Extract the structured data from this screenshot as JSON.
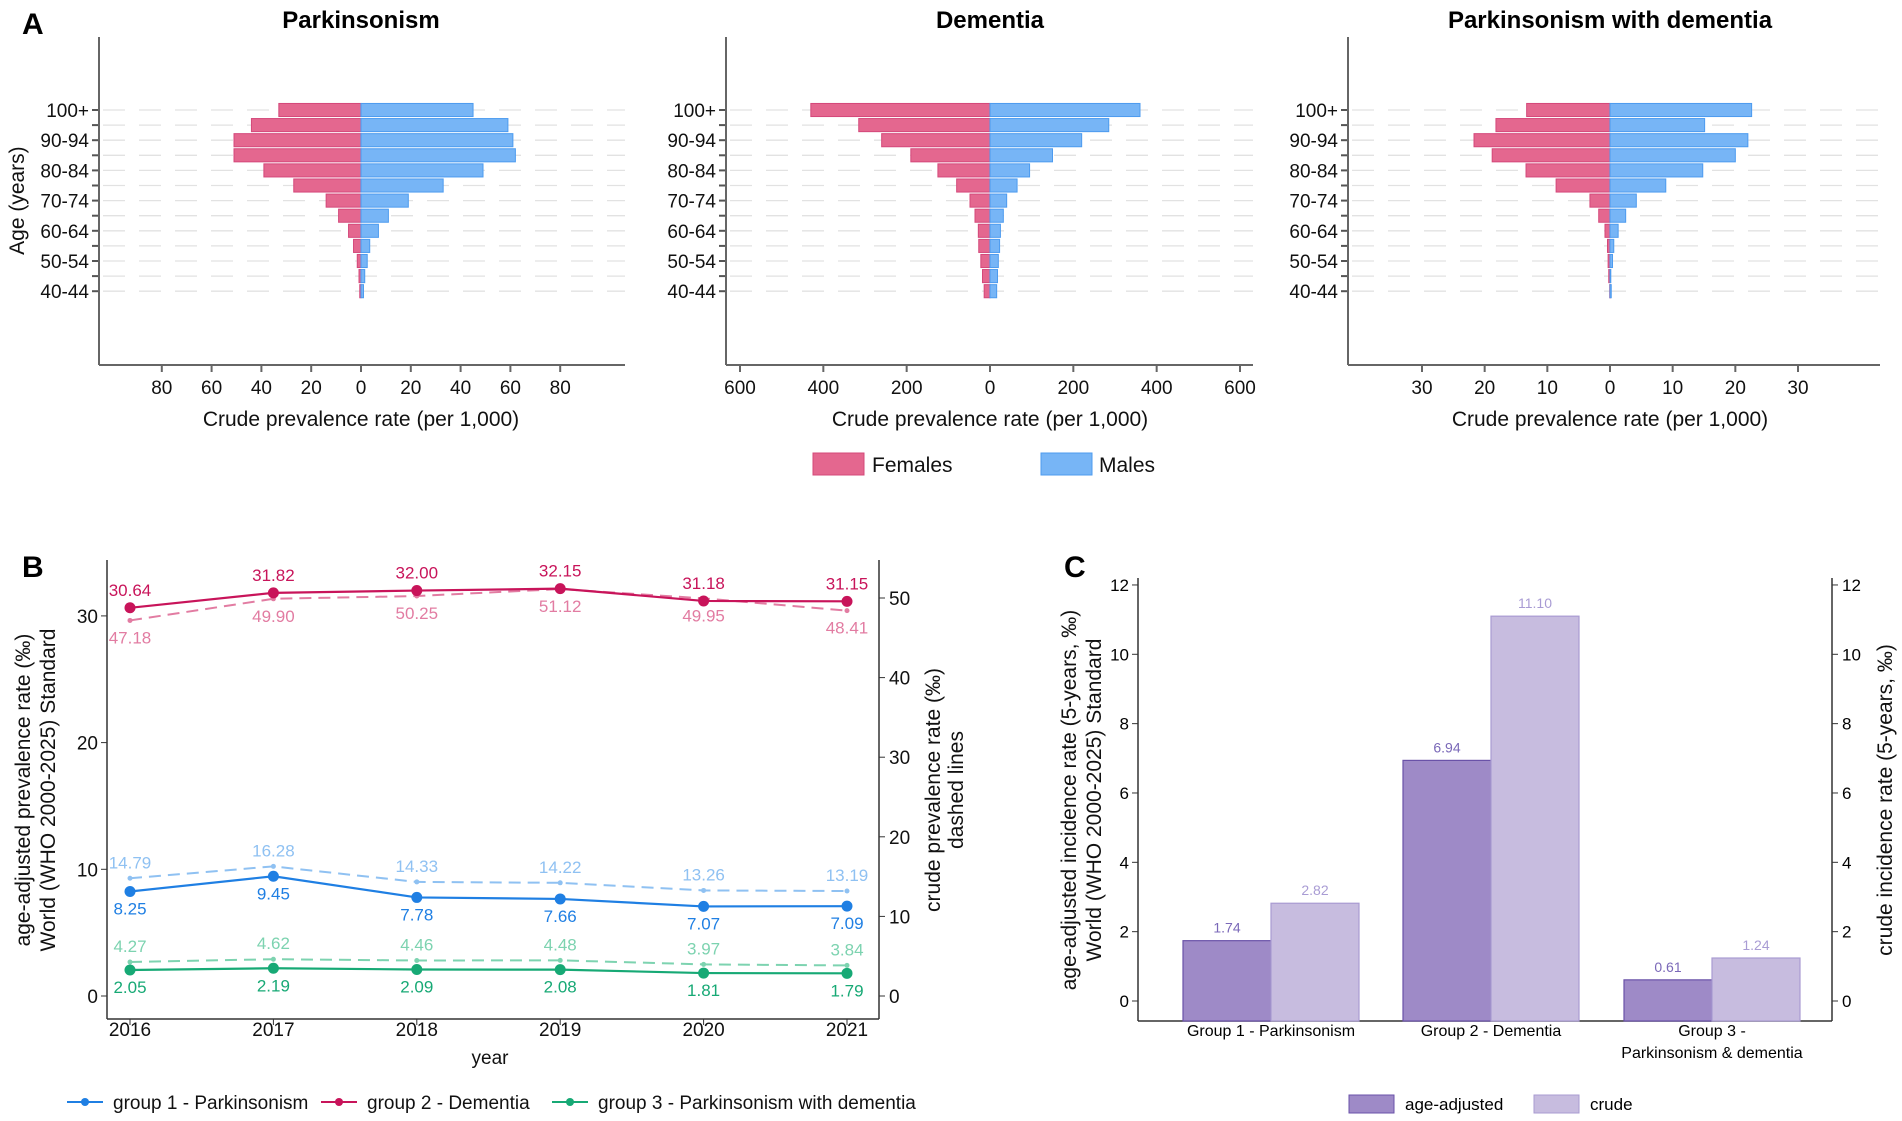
{
  "panel_labels": {
    "a": "A",
    "b": "B",
    "c": "C"
  },
  "legend_a": {
    "females": "Females",
    "males": "Males",
    "colors": {
      "females": "#e4678f",
      "males": "#77b5f6"
    }
  },
  "chart_data": [
    {
      "type": "bar",
      "orientation": "horizontal-pyramid",
      "title": "Parkinsonism",
      "ylabel": "Age (years)",
      "xlabel": "Crude prevalence rate (per 1,000)",
      "tick_labels_y": [
        "100+",
        "90-94",
        "80-84",
        "70-74",
        "60-64",
        "50-54",
        "40-44"
      ],
      "xticks": [
        "80",
        "60",
        "40",
        "20",
        "0",
        "20",
        "40",
        "60",
        "80"
      ],
      "xlim": [
        -80,
        80
      ],
      "series": [
        {
          "name": "Females",
          "values": [
            33,
            44,
            51,
            51,
            39,
            27,
            14,
            9,
            5,
            3,
            1.5,
            0.8,
            0.5
          ]
        },
        {
          "name": "Males",
          "values": [
            45,
            59,
            61,
            62,
            49,
            33,
            19,
            11,
            7,
            3.5,
            2.5,
            1.5,
            1
          ]
        }
      ]
    },
    {
      "type": "bar",
      "orientation": "horizontal-pyramid",
      "title": "Dementia",
      "xlabel": "Crude prevalence rate (per 1,000)",
      "tick_labels_y": [
        "100+",
        "90-94",
        "80-84",
        "70-74",
        "60-64",
        "50-54",
        "40-44"
      ],
      "xticks": [
        "600",
        "400",
        "200",
        "0",
        "200",
        "400",
        "600"
      ],
      "xlim": [
        -600,
        600
      ],
      "series": [
        {
          "name": "Females",
          "values": [
            430,
            315,
            260,
            190,
            125,
            80,
            48,
            36,
            28,
            27,
            22,
            18,
            14
          ]
        },
        {
          "name": "Males",
          "values": [
            360,
            285,
            220,
            150,
            95,
            65,
            40,
            32,
            25,
            23,
            20,
            18,
            16
          ]
        }
      ]
    },
    {
      "type": "bar",
      "orientation": "horizontal-pyramid",
      "title": "Parkinsonism with dementia",
      "xlabel": "Crude prevalence rate (per 1,000)",
      "tick_labels_y": [
        "100+",
        "90-94",
        "80-84",
        "70-74",
        "60-64",
        "50-54",
        "40-44"
      ],
      "xticks": [
        "30",
        "20",
        "10",
        "0",
        "10",
        "20",
        "30"
      ],
      "xlim": [
        -30,
        30
      ],
      "series": [
        {
          "name": "Females",
          "values": [
            13.3,
            18.2,
            21.7,
            18.8,
            13.4,
            8.6,
            3.2,
            1.8,
            0.8,
            0.4,
            0.3,
            0.2,
            0.05
          ]
        },
        {
          "name": "Males",
          "values": [
            22.6,
            15.1,
            22,
            20,
            14.8,
            8.9,
            4.2,
            2.5,
            1.3,
            0.6,
            0.4,
            0.1,
            0.2
          ]
        }
      ]
    },
    {
      "type": "line",
      "xlabel": "year",
      "ylabel": [
        "age-adjusted prevalence rate (‰)",
        "World (WHO 2000-2025) Standard"
      ],
      "ylabel_right": [
        "crude prevalence rate (‰)",
        "dashed lines"
      ],
      "x": [
        "2016",
        "2017",
        "2018",
        "2019",
        "2020",
        "2021"
      ],
      "ylim": [
        0,
        32.5
      ],
      "yticks": [
        "0",
        "10",
        "20",
        "30"
      ],
      "ylim_right": [
        0,
        52
      ],
      "yticks_right": [
        "0",
        "10",
        "20",
        "30",
        "40",
        "50"
      ],
      "series": [
        {
          "name": "group 1 - Parkinsonism",
          "color": "#1f7fe3",
          "crude_color": "#8fc1f2",
          "adjusted": [
            "8.25",
            "9.45",
            "7.78",
            "7.66",
            "7.07",
            "7.09"
          ],
          "crude": [
            "14.79",
            "16.28",
            "14.33",
            "14.22",
            "13.26",
            "13.19"
          ]
        },
        {
          "name": "group 2 - Dementia",
          "color": "#c8145a",
          "crude_color": "#e27ca2",
          "adjusted": [
            "30.64",
            "31.82",
            "32.00",
            "32.15",
            "31.18",
            "31.15"
          ],
          "crude": [
            "47.18",
            "49.90",
            "50.25",
            "51.12",
            "49.95",
            "48.41"
          ]
        },
        {
          "name": "group 3 - Parkinsonism with dementia",
          "color": "#17a975",
          "crude_color": "#7dd3b0",
          "adjusted": [
            "2.05",
            "2.19",
            "2.09",
            "2.08",
            "1.81",
            "1.79"
          ],
          "crude": [
            "4.27",
            "4.62",
            "4.46",
            "4.48",
            "3.97",
            "3.84"
          ]
        }
      ],
      "legend_position": "bottom"
    },
    {
      "type": "bar",
      "ylabel": [
        "age-adjusted incidence rate (5-years, ‰)",
        "World (WHO 2000-2025) Standard"
      ],
      "ylabel_right": "crude incidence rate (5-years, ‰)",
      "categories": [
        [
          "Group 1 - Parkinsonism"
        ],
        [
          "Group 2 - Dementia"
        ],
        [
          "Group 3 -",
          "Parkinsonism & dementia"
        ]
      ],
      "ylim": [
        0,
        12
      ],
      "yticks": [
        "0",
        "2",
        "4",
        "6",
        "8",
        "10",
        "12"
      ],
      "series": [
        {
          "name": "age-adjusted",
          "color": "#9e8ac7",
          "values": [
            "1.74",
            "6.94",
            "0.61"
          ]
        },
        {
          "name": "crude",
          "color": "#c7bcdf",
          "values": [
            "2.82",
            "11.10",
            "1.24"
          ]
        }
      ],
      "legend_position": "bottom"
    }
  ]
}
